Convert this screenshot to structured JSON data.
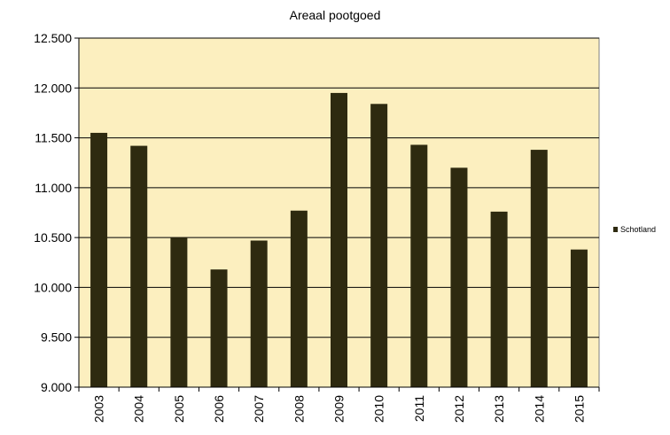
{
  "chart_data": {
    "type": "bar",
    "title": "Areaal pootgoed",
    "xlabel": "",
    "ylabel": "",
    "categories": [
      "2003",
      "2004",
      "2005",
      "2006",
      "2007",
      "2008",
      "2009",
      "2010",
      "2011",
      "2012",
      "2013",
      "2014",
      "2015"
    ],
    "series": [
      {
        "name": "Schotland",
        "values": [
          11550,
          11420,
          10500,
          10180,
          10470,
          10770,
          11950,
          11840,
          11430,
          11200,
          10760,
          11380,
          10380
        ]
      }
    ],
    "ylim": [
      9000,
      12500
    ],
    "yticks": [
      9000,
      9500,
      10000,
      10500,
      11000,
      11500,
      12000,
      12500
    ],
    "ytick_labels": [
      "9.000",
      "9.500",
      "10.000",
      "10.500",
      "11.000",
      "11.500",
      "12.000",
      "12.500"
    ],
    "grid": true,
    "legend_position": "right",
    "colors": {
      "bar": "#2e2a10",
      "plot_background": "#fcefbf",
      "grid": "#000000"
    }
  }
}
